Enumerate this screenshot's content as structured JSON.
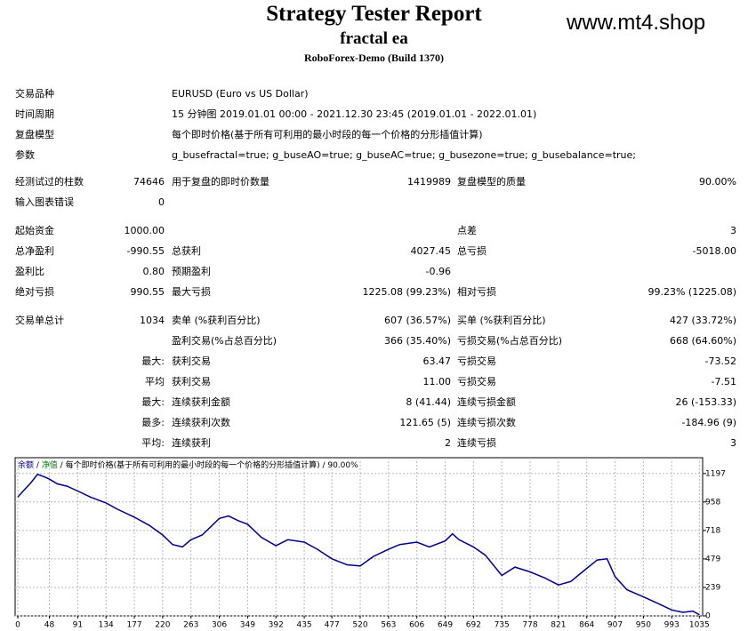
{
  "header": {
    "title": "Strategy Tester Report",
    "ea": "fractal ea",
    "server": "RoboForex-Demo (Build 1370)",
    "watermark": "www.mt4.shop"
  },
  "info": [
    [
      "交易品种",
      "EURUSD (Euro vs US Dollar)"
    ],
    [
      "时间周期",
      "15 分钟图 2019.01.01 00:00 - 2021.12.30 23:45 (2019.01.01 - 2022.01.01)"
    ],
    [
      "复盘模型",
      "每个即时价格(基于所有可利用的最小时段的每一个价格的分形插值计算)"
    ],
    [
      "参数",
      "g_busefractal=true; g_buseAO=true; g_buseAC=true; g_busezone=true; g_busebalance=true;"
    ]
  ],
  "stats": [
    [
      "经测试过的柱数",
      "74646",
      "用于复盘的即时价数量",
      "1419989",
      "复盘模型的质量",
      "90.00%"
    ],
    [
      "输入图表错误",
      "0",
      null,
      null,
      null,
      null
    ],
    [
      "起始资金",
      "1000.00",
      null,
      null,
      "点差",
      "3"
    ],
    [
      "总净盈利",
      "-990.55",
      "总获利",
      "4027.45",
      "总亏损",
      "-5018.00"
    ],
    [
      "盈利比",
      "0.80",
      "预期盈利",
      "-0.96",
      null,
      null
    ],
    [
      "绝对亏损",
      "990.55",
      "最大亏损",
      "1225.08 (99.23%)",
      "相对亏损",
      "99.23% (1225.08)"
    ],
    [
      "交易单总计",
      "1034",
      "卖单 (%获利百分比)",
      "607 (36.57%)",
      "买单 (%获利百分比)",
      "427 (33.72%)"
    ],
    [
      null,
      null,
      "盈利交易(%占总百分比)",
      "366 (35.40%)",
      "亏损交易(%占总百分比)",
      "668 (64.60%)"
    ],
    [
      null,
      "最大:",
      "获利交易",
      "63.47",
      "亏损交易",
      "-73.52"
    ],
    [
      null,
      "平均",
      "获利交易",
      "11.00",
      "亏损交易",
      "-7.51"
    ],
    [
      null,
      "最大:",
      "连续获利金额",
      "8 (41.44)",
      "连续亏损金额",
      "26 (-153.33)"
    ],
    [
      null,
      "最多:",
      "连续获利次数",
      "121.65 (5)",
      "连续亏损次数",
      "-184.96 (9)"
    ],
    [
      null,
      "平均:",
      "连续获利",
      "2",
      "连续亏损",
      "3"
    ]
  ],
  "chart_data": {
    "type": "line",
    "equity_label": "净值",
    "equity_color": "#008000",
    "model_label": "每个即时价格(基于所有可利用的最小时段的每一个价格的分形插值计算)",
    "quality_label": "90.00%",
    "x": [
      0,
      10,
      20,
      30,
      40,
      48,
      60,
      75,
      91,
      110,
      134,
      150,
      177,
      200,
      220,
      235,
      250,
      263,
      280,
      306,
      320,
      335,
      349,
      370,
      392,
      410,
      435,
      455,
      477,
      500,
      520,
      540,
      563,
      580,
      606,
      625,
      649,
      660,
      670,
      692,
      710,
      735,
      755,
      778,
      800,
      821,
      840,
      864,
      880,
      895,
      907,
      925,
      950,
      970,
      993,
      1010,
      1025,
      1035
    ],
    "series": [
      {
        "name": "余额",
        "color": "#00008b",
        "values": [
          1000,
          1060,
          1120,
          1190,
          1170,
          1150,
          1110,
          1090,
          1050,
          1000,
          950,
          900,
          830,
          760,
          680,
          600,
          580,
          640,
          680,
          820,
          840,
          800,
          770,
          660,
          590,
          640,
          620,
          560,
          480,
          430,
          420,
          500,
          560,
          600,
          620,
          580,
          630,
          690,
          640,
          580,
          510,
          340,
          410,
          370,
          320,
          260,
          290,
          400,
          470,
          480,
          330,
          220,
          160,
          110,
          50,
          30,
          40,
          10
        ]
      }
    ],
    "xlim": [
      0,
      1040
    ],
    "ylim": [
      0,
      1330
    ],
    "xticks": [
      0,
      48,
      91,
      134,
      177,
      220,
      263,
      306,
      349,
      392,
      435,
      477,
      520,
      563,
      606,
      649,
      692,
      735,
      778,
      821,
      864,
      907,
      950,
      993,
      1035
    ],
    "yticks": [
      0,
      239,
      479,
      718,
      958,
      1197
    ],
    "grid": true
  }
}
